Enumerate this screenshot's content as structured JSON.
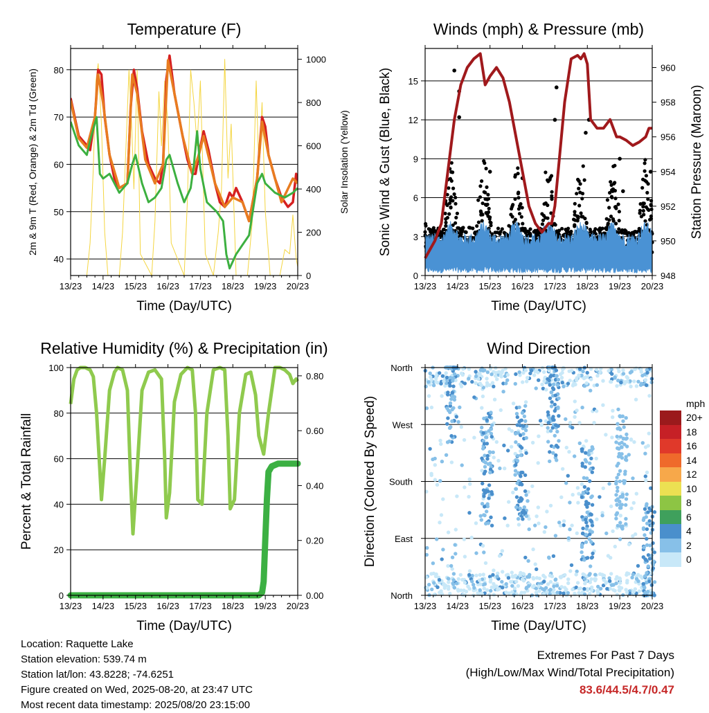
{
  "x_ticks": [
    "13/23",
    "14/23",
    "15/23",
    "16/23",
    "17/23",
    "18/23",
    "19/23",
    "20/23"
  ],
  "x_label": "Time (Day/UTC)",
  "chart_data": [
    {
      "type": "line",
      "title": "Temperature (F)",
      "ylabel": "2m & 9m T (Red, Orange) & 2m Td (Green)",
      "ylabel_right": "Solar Insolation (Yellow)",
      "xlabel": "Time (Day/UTC)",
      "categories": [
        "13/23",
        "14/23",
        "15/23",
        "16/23",
        "17/23",
        "18/23",
        "19/23",
        "20/23"
      ],
      "ylim": [
        36.5,
        84.5
      ],
      "yticks": [
        40,
        50,
        60,
        70,
        80
      ],
      "ylim_right": [
        0,
        1050
      ],
      "yticks_right": [
        0,
        200,
        400,
        600,
        800,
        1000
      ],
      "series": [
        {
          "color": "#d62020",
          "axis": "left",
          "x": [
            0,
            0.25,
            0.5,
            0.6,
            0.75,
            0.85,
            0.95,
            1.05,
            1.2,
            1.35,
            1.5,
            1.75,
            1.85,
            1.95,
            2.05,
            2.2,
            2.4,
            2.6,
            2.75,
            2.85,
            2.95,
            3.05,
            3.2,
            3.45,
            3.6,
            3.75,
            3.85,
            3.95,
            4.1,
            4.25,
            4.45,
            4.6,
            4.75,
            4.9,
            5.0,
            5.1,
            5.3,
            5.5,
            5.75,
            5.9,
            6.0,
            6.1,
            6.3,
            6.5,
            6.7,
            6.85,
            6.95,
            7.0
          ],
          "y": [
            74,
            66,
            64,
            63,
            70,
            80,
            79,
            70,
            62,
            57,
            55,
            56,
            72,
            80,
            76,
            67,
            60,
            57,
            56,
            60,
            78,
            83,
            75,
            66,
            61,
            58,
            58,
            62,
            67,
            63,
            56,
            52,
            51,
            54,
            53,
            55,
            52,
            48,
            57,
            70,
            68,
            62,
            57,
            53,
            51,
            52,
            58,
            56
          ]
        },
        {
          "color": "#e87c20",
          "axis": "left",
          "x": [
            0,
            0.25,
            0.5,
            0.75,
            0.85,
            1.0,
            1.2,
            1.5,
            1.75,
            1.9,
            2.05,
            2.3,
            2.6,
            2.85,
            3.0,
            3.2,
            3.45,
            3.75,
            3.95,
            4.1,
            4.45,
            4.75,
            5.0,
            5.3,
            5.5,
            5.75,
            5.9,
            6.1,
            6.5,
            6.85,
            7.0
          ],
          "y": [
            73.5,
            65.5,
            63.5,
            70,
            79,
            73,
            62,
            55,
            56,
            79,
            75,
            61,
            56,
            60,
            82,
            75,
            66,
            58,
            62,
            66,
            56,
            51,
            53,
            52,
            48,
            57,
            69,
            62,
            52,
            57,
            56
          ]
        },
        {
          "color": "#3cb040",
          "axis": "left",
          "x": [
            0,
            0.25,
            0.5,
            0.6,
            0.8,
            0.9,
            1.0,
            1.2,
            1.5,
            1.75,
            1.9,
            2.0,
            2.2,
            2.4,
            2.6,
            2.8,
            2.95,
            3.05,
            3.3,
            3.5,
            3.7,
            3.8,
            3.9,
            4.0,
            4.2,
            4.5,
            4.7,
            4.8,
            4.9,
            5.1,
            5.3,
            5.5,
            5.75,
            5.9,
            6.0,
            6.3,
            6.6,
            6.85,
            7.0
          ],
          "y": [
            69,
            64,
            62,
            65,
            70,
            58,
            57,
            58,
            54,
            56,
            60,
            62,
            56,
            52,
            53,
            55,
            61,
            62,
            56,
            52,
            55,
            60,
            67,
            59,
            52,
            50,
            48,
            41,
            38,
            41,
            43,
            45,
            56,
            58,
            56,
            54,
            53,
            54,
            55
          ]
        },
        {
          "color": "#f4d540",
          "axis": "right",
          "x": [
            0,
            0.3,
            0.5,
            0.6,
            0.7,
            0.78,
            0.85,
            0.95,
            1.05,
            1.15,
            1.5,
            1.6,
            1.72,
            1.8,
            1.88,
            1.95,
            2.05,
            2.15,
            2.5,
            2.6,
            2.72,
            2.8,
            2.9,
            3.0,
            3.1,
            3.5,
            3.6,
            3.7,
            3.8,
            3.9,
            4.0,
            4.15,
            4.4,
            4.55,
            4.65,
            4.75,
            4.85,
            4.95,
            5.1,
            5.45,
            5.6,
            5.72,
            5.8,
            5.9,
            6.0,
            6.15,
            6.45,
            6.6,
            6.75,
            6.85,
            6.95,
            7.0
          ],
          "y": [
            0,
            0,
            0,
            150,
            500,
            900,
            980,
            700,
            200,
            0,
            0,
            200,
            650,
            950,
            700,
            400,
            950,
            100,
            0,
            250,
            850,
            600,
            900,
            700,
            150,
            0,
            350,
            950,
            800,
            600,
            900,
            100,
            0,
            200,
            400,
            1000,
            450,
            700,
            0,
            0,
            250,
            900,
            500,
            800,
            300,
            0,
            0,
            120,
            100,
            280,
            80,
            40
          ]
        }
      ]
    },
    {
      "type": "scatter",
      "title": "Winds (mph) & Pressure (mb)",
      "ylabel": "Sonic Wind & Gust (Blue, Black)",
      "ylabel_right": "Station Pressure (Maroon)",
      "xlabel": "Time (Day/UTC)",
      "categories": [
        "13/23",
        "14/23",
        "15/23",
        "16/23",
        "17/23",
        "18/23",
        "19/23",
        "20/23"
      ],
      "ylim": [
        0,
        17.5
      ],
      "yticks": [
        0,
        3,
        6,
        9,
        12,
        15
      ],
      "ylim_right": [
        948,
        961.1
      ],
      "yticks_right": [
        948,
        950,
        952,
        954,
        956,
        958,
        960
      ],
      "series": [
        {
          "name": "Station Pressure",
          "type": "line",
          "axis": "right",
          "color": "#a0191c",
          "x": [
            0,
            0.3,
            0.5,
            0.7,
            0.9,
            1.1,
            1.3,
            1.5,
            1.7,
            1.85,
            2.0,
            2.2,
            2.4,
            2.6,
            2.8,
            3.0,
            3.2,
            3.4,
            3.6,
            3.8,
            3.9,
            4.0,
            4.15,
            4.3,
            4.5,
            4.7,
            4.8,
            4.9,
            5.0,
            5.1,
            5.3,
            5.5,
            5.7,
            5.8,
            5.9,
            6.0,
            6.2,
            6.4,
            6.6,
            6.8,
            6.9,
            7.0
          ],
          "y": [
            949,
            950,
            951,
            954,
            957,
            959,
            960,
            960.5,
            960.8,
            959,
            959.5,
            960,
            959.4,
            958,
            956,
            954,
            952,
            951,
            950.5,
            951,
            951,
            952,
            955,
            958,
            960.5,
            960.7,
            960.5,
            960.8,
            960.2,
            957,
            956.5,
            956.5,
            957,
            956.5,
            956,
            956,
            955.8,
            955.5,
            955.7,
            956,
            956.5,
            956.5
          ]
        },
        {
          "name": "Sonic Wind",
          "type": "scatter",
          "axis": "left",
          "color": "#4a92d4",
          "band": [
            0.6,
            3.2
          ]
        },
        {
          "name": "Gust",
          "type": "scatter",
          "axis": "left",
          "color": "#000000",
          "peaks": [
            [
              0.9,
              15.8
            ],
            [
              1.05,
              14.2
            ],
            [
              1.05,
              12.2
            ],
            [
              2.0,
              8.0
            ],
            [
              3.0,
              7.5
            ],
            [
              4.05,
              14.5
            ],
            [
              4.0,
              12.0
            ],
            [
              4.95,
              11.0
            ],
            [
              5.05,
              12.0
            ],
            [
              6.0,
              9.0
            ],
            [
              6.1,
              6.5
            ],
            [
              6.95,
              8.0
            ]
          ]
        }
      ]
    },
    {
      "type": "line",
      "title": "Relative Humidity (%) & Precipitation (in)",
      "ylabel": "Percent & Total Rainfall",
      "xlabel": "Time (Day/UTC)",
      "categories": [
        "13/23",
        "14/23",
        "15/23",
        "16/23",
        "17/23",
        "18/23",
        "19/23",
        "20/23"
      ],
      "ylim": [
        0,
        100
      ],
      "yticks": [
        0,
        20,
        40,
        60,
        80,
        100
      ],
      "ylim_right": [
        0,
        0.83
      ],
      "yticks_right": [
        0.0,
        0.2,
        0.4,
        0.6,
        0.8
      ],
      "series": [
        {
          "name": "Relative Humidity",
          "color": "#8fca4e",
          "axis": "left",
          "x": [
            0,
            0.1,
            0.2,
            0.3,
            0.45,
            0.6,
            0.7,
            0.8,
            0.9,
            0.95,
            1.05,
            1.2,
            1.35,
            1.45,
            1.6,
            1.75,
            1.85,
            1.92,
            2.05,
            2.2,
            2.4,
            2.6,
            2.8,
            2.9,
            2.95,
            3.05,
            3.2,
            3.4,
            3.6,
            3.75,
            3.85,
            3.92,
            4.05,
            4.2,
            4.4,
            4.6,
            4.75,
            4.85,
            4.92,
            5.05,
            5.2,
            5.4,
            5.55,
            5.7,
            5.8,
            5.95,
            6.1,
            6.3,
            6.45,
            6.6,
            6.75,
            6.85,
            6.95,
            7.0
          ],
          "y": [
            84,
            95,
            99,
            100,
            100,
            99,
            96,
            80,
            55,
            42,
            60,
            90,
            98,
            100,
            99,
            90,
            50,
            27,
            55,
            90,
            98,
            99,
            95,
            60,
            34,
            45,
            85,
            97,
            100,
            99,
            80,
            42,
            40,
            80,
            99,
            100,
            99,
            70,
            38,
            42,
            80,
            97,
            98,
            88,
            70,
            62,
            80,
            100,
            100,
            99,
            97,
            93,
            95,
            94
          ]
        },
        {
          "name": "Total Precipitation",
          "color": "#3cb043",
          "axis": "right",
          "x": [
            0,
            5.8,
            5.9,
            5.95,
            6.0,
            6.05,
            6.1,
            6.2,
            6.4,
            6.6,
            7.0
          ],
          "y": [
            0,
            0,
            0.01,
            0.05,
            0.2,
            0.35,
            0.45,
            0.47,
            0.48,
            0.48,
            0.48
          ]
        }
      ]
    },
    {
      "type": "scatter",
      "title": "Wind Direction",
      "ylabel": "Direction (Colored By Speed)",
      "xlabel": "Time (Day/UTC)",
      "categories": [
        "13/23",
        "14/23",
        "15/23",
        "16/23",
        "17/23",
        "18/23",
        "19/23",
        "20/23"
      ],
      "yticks_labels": [
        "North",
        "East",
        "South",
        "West",
        "North"
      ],
      "yticks": [
        0,
        90,
        180,
        270,
        360
      ],
      "ylim": [
        0,
        360
      ],
      "colorbar": {
        "unit": "mph",
        "levels": [
          "20+",
          "18",
          "16",
          "14",
          "12",
          "10",
          "8",
          "6",
          "4",
          "2",
          "0"
        ],
        "colors": [
          "#9b1a1c",
          "#c62026",
          "#e0392a",
          "#ef6a2b",
          "#f7a84a",
          "#ece052",
          "#8dc544",
          "#3fa05c",
          "#4a8fcc",
          "#87c0e8",
          "#c8e8f8"
        ]
      },
      "clusters": [
        {
          "x": 0.8,
          "ydir": 330,
          "color": "#4a8fcc"
        },
        {
          "x": 1.9,
          "ydir": 200,
          "color": "#4a8fcc"
        },
        {
          "x": 2.95,
          "ydir": 210,
          "color": "#4a8fcc"
        },
        {
          "x": 3.95,
          "ydir": 300,
          "color": "#4a8fcc"
        },
        {
          "x": 5.0,
          "ydir": 145,
          "color": "#4a8fcc"
        },
        {
          "x": 6.05,
          "ydir": 195,
          "color": "#87c0e8"
        },
        {
          "x": 6.9,
          "ydir": 60,
          "color": "#4a8fcc"
        }
      ]
    }
  ],
  "info": {
    "location": "Location: Raquette Lake",
    "elevation": "Station elevation: 539.74 m",
    "latlon": "Station lat/lon: 43.8228; -74.6251",
    "created": "Figure created on Wed, 2025-08-20, at 23:47 UTC",
    "recent": "Most recent data timestamp: 2025/08/20 23:15:00"
  },
  "extremes": {
    "line1": "Extremes For Past 7 Days",
    "line2": "(High/Low/Max Wind/Total Precipitation)",
    "value": "83.6/44.5/4.7/0.47"
  }
}
